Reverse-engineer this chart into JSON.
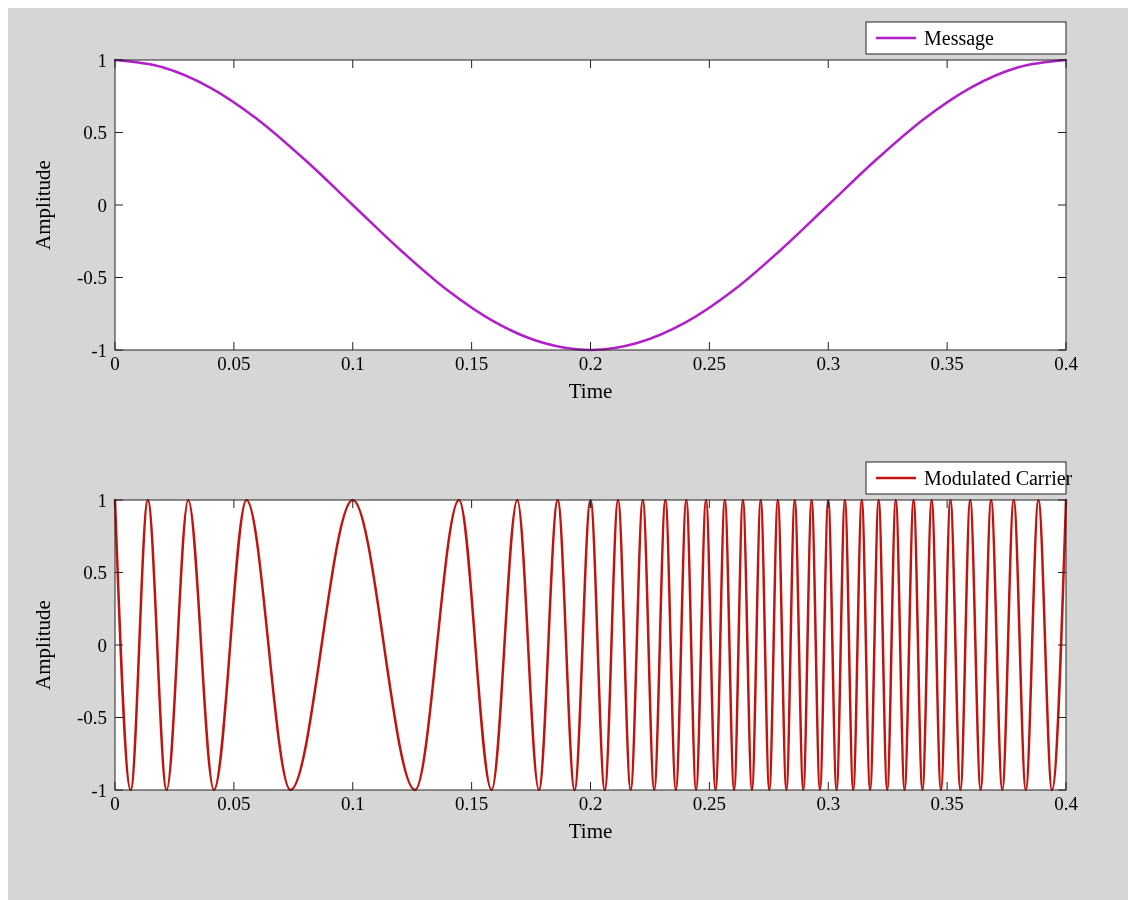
{
  "chart_data": [
    {
      "type": "line",
      "xlabel": "Time",
      "ylabel": "Amplitude",
      "xlim": [
        0,
        0.4
      ],
      "ylim": [
        -1,
        1
      ],
      "xticks": [
        0,
        0.05,
        0.1,
        0.15,
        0.2,
        0.25,
        0.3,
        0.35,
        0.4
      ],
      "yticks": [
        -1,
        -0.5,
        0,
        0.5,
        1
      ],
      "legend": "top right",
      "series": [
        {
          "name": "Message",
          "color": "#b21ec9",
          "x": [
            0,
            0.02,
            0.04,
            0.06,
            0.08,
            0.1,
            0.12,
            0.14,
            0.16,
            0.18,
            0.2,
            0.22,
            0.24,
            0.26,
            0.28,
            0.3,
            0.32,
            0.34,
            0.36,
            0.38,
            0.4
          ],
          "values": [
            1,
            0.95,
            0.81,
            0.59,
            0.31,
            0,
            -0.31,
            -0.59,
            -0.81,
            -0.95,
            -1,
            -0.95,
            -0.81,
            -0.59,
            -0.31,
            0,
            0.31,
            0.59,
            0.81,
            0.95,
            1
          ]
        }
      ]
    },
    {
      "type": "line",
      "xlabel": "Time",
      "ylabel": "Amplitude",
      "xlim": [
        0,
        0.4
      ],
      "ylim": [
        -1,
        1
      ],
      "xticks": [
        0,
        0.05,
        0.1,
        0.15,
        0.2,
        0.25,
        0.3,
        0.35,
        0.4
      ],
      "yticks": [
        -1,
        -0.5,
        0,
        0.5,
        1
      ],
      "legend": "top right",
      "series": [
        {
          "name": "Modulated Carrier",
          "color": "#c0140f",
          "x": [
            0,
            0.0066,
            0.0138,
            0.0217,
            0.0308,
            0.0416,
            0.0553,
            0.0738,
            0.1,
            0.1262,
            0.1447,
            0.1584,
            0.1692,
            0.1783,
            0.1862,
            0.1933,
            0.2,
            0.206,
            0.2116,
            0.2169,
            0.222,
            0.2268,
            0.2315,
            0.2359,
            0.2403,
            0.2444,
            0.2486,
            0.2526,
            0.2565,
            0.2604,
            0.2641,
            0.2679,
            0.2716,
            0.2752,
            0.2788,
            0.2824,
            0.2859,
            0.2895,
            0.293,
            0.2965,
            0.3,
            0.3035,
            0.307,
            0.3105,
            0.3141,
            0.3176,
            0.3212,
            0.3248,
            0.3284,
            0.3321,
            0.3359,
            0.3396,
            0.3435,
            0.3474,
            0.3514,
            0.3556,
            0.3597,
            0.3641,
            0.3685,
            0.3732,
            0.378,
            0.3831,
            0.3884,
            0.3941,
            0.4
          ],
          "values": [
            1,
            -1,
            1,
            -1,
            1,
            -1,
            1,
            -1,
            1,
            -1,
            1,
            -1,
            1,
            -1,
            1,
            -1,
            1,
            -1,
            1,
            -1,
            1,
            -1,
            1,
            -1,
            1,
            -1,
            1,
            -1,
            1,
            -1,
            1,
            -1,
            1,
            -1,
            1,
            -1,
            1,
            -1,
            1,
            -1,
            1,
            -1,
            1,
            -1,
            1,
            -1,
            1,
            -1,
            1,
            -1,
            1,
            -1,
            1,
            -1,
            1,
            -1,
            1,
            -1,
            1,
            -1,
            1,
            -1,
            1,
            -1,
            1
          ]
        }
      ]
    }
  ]
}
